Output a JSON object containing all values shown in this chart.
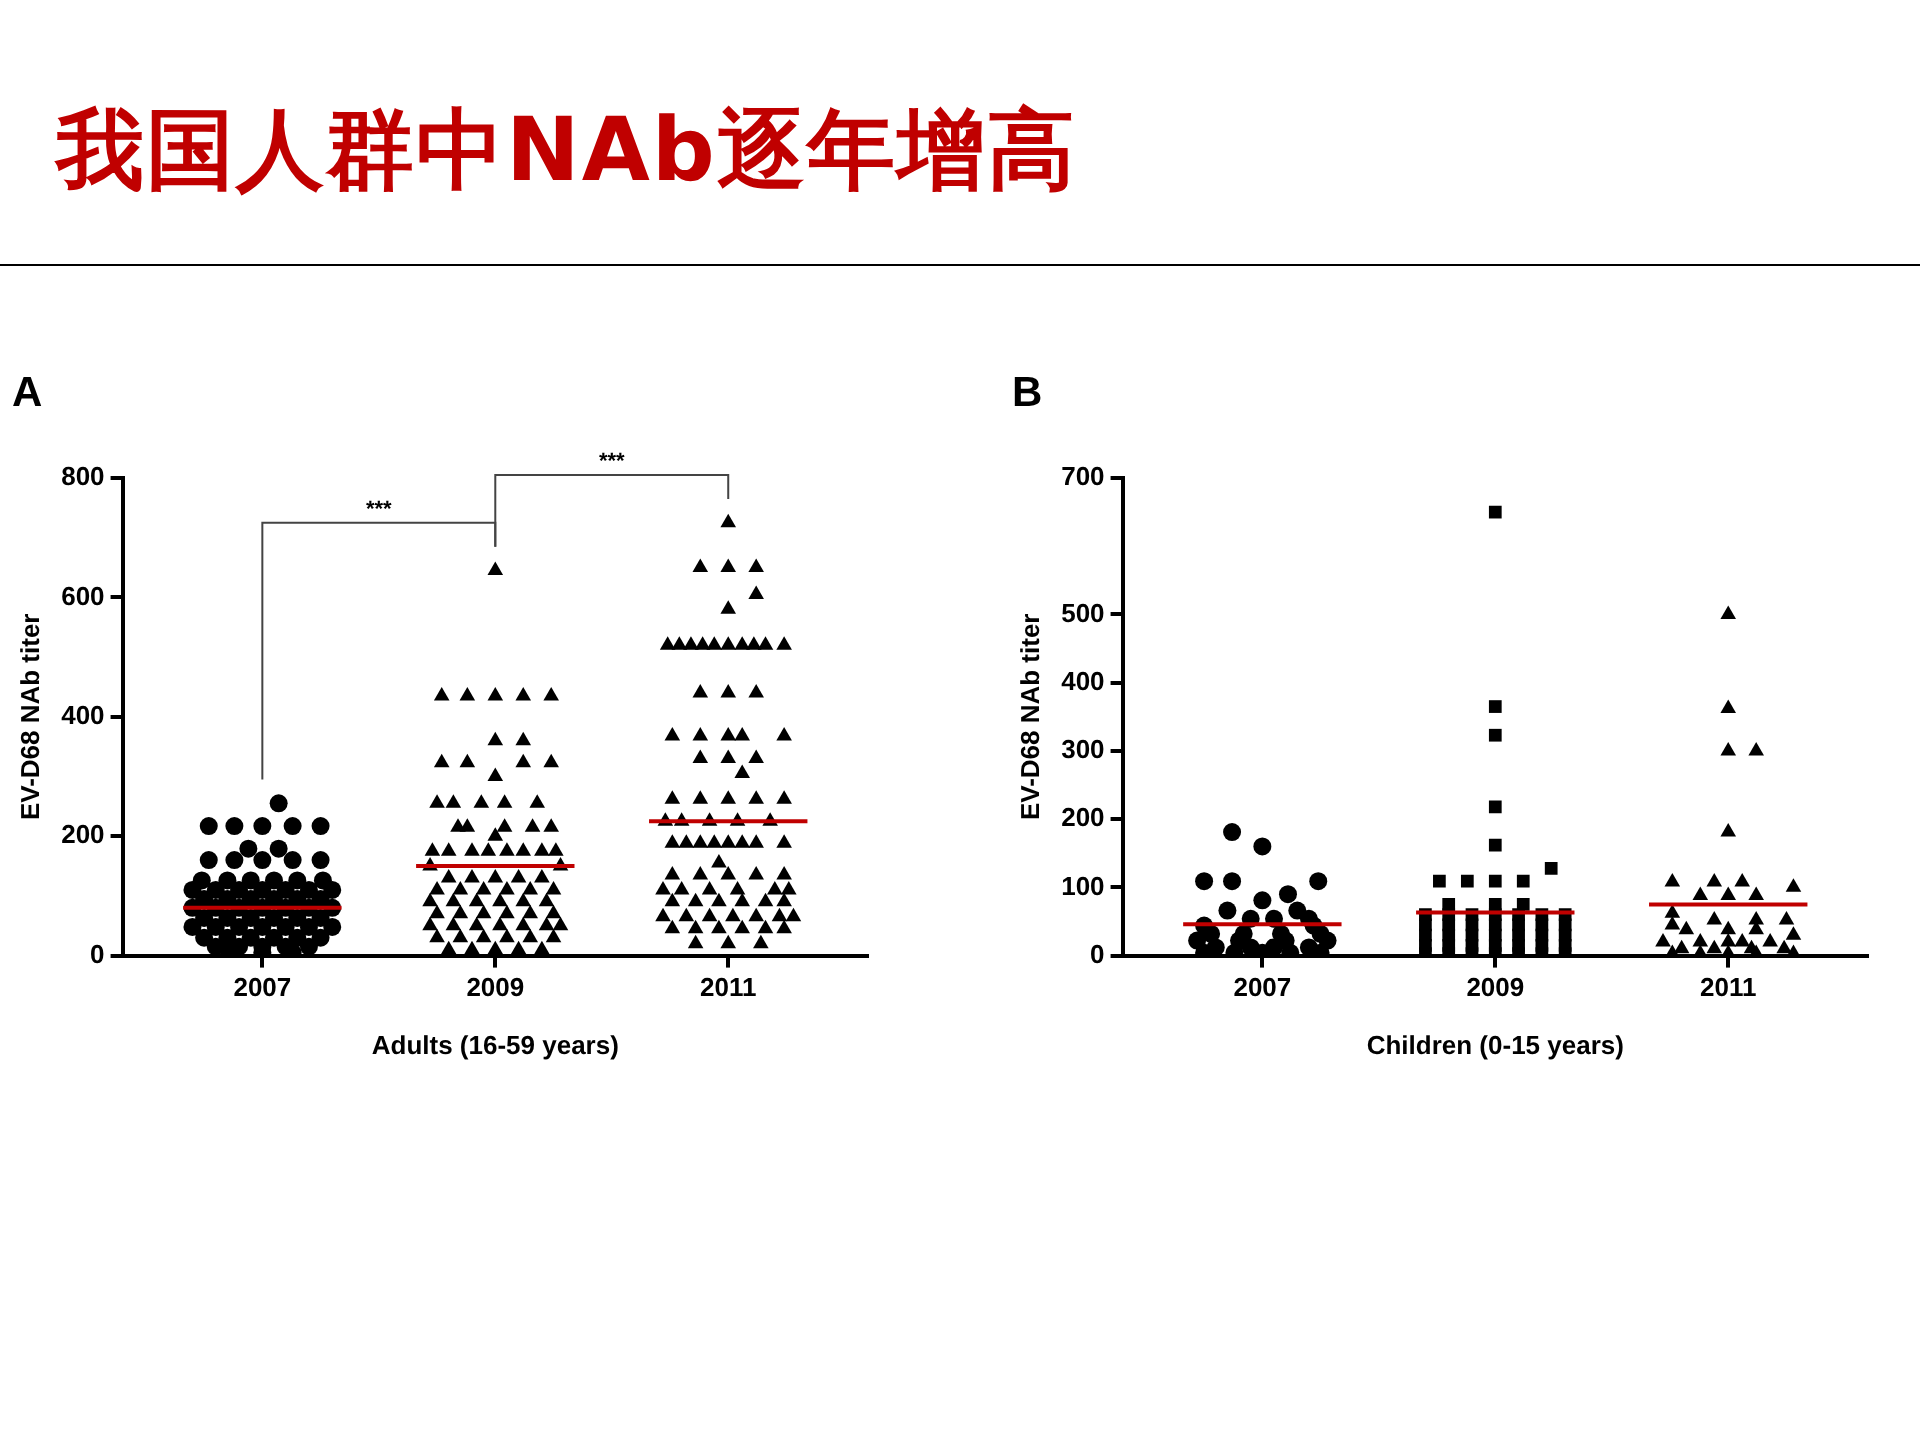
{
  "chart_data": [
    {
      "type": "scatter",
      "title": "我国人群中NAb逐年增高",
      "xlabel": "Adults (16-59 years)",
      "ylabel": "EV-D68 NAb titer",
      "annotations": [
        "A",
        "***",
        "***"
      ],
      "xlim": [
        2005.8,
        2012.2
      ],
      "xticks": [
        2007,
        2009,
        2011
      ],
      "ylim": [
        0,
        800
      ],
      "yticks": [
        0,
        200,
        400,
        600,
        800
      ],
      "grid": false,
      "series": [
        {
          "color": "#000000",
          "marker": "circle",
          "x": [
            2007.14,
            2006.54,
            2006.76,
            2007,
            2007.26,
            2007.5,
            2006.88,
            2007.14,
            2006.54,
            2006.76,
            2007,
            2007.26,
            2007.5,
            2006.48,
            2006.7,
            2006.9,
            2007.1,
            2007.3,
            2007.52,
            2006.4,
            2006.6,
            2006.8,
            2007,
            2007.2,
            2007.4,
            2007.6,
            2006.5,
            2006.7,
            2006.9,
            2007.1,
            2007.3,
            2007.5,
            2006.4,
            2006.6,
            2006.8,
            2007,
            2007.2,
            2007.4,
            2007.6,
            2006.5,
            2006.7,
            2006.9,
            2007.1,
            2007.3,
            2007.5,
            2006.4,
            2006.6,
            2006.8,
            2007,
            2007.2,
            2007.4,
            2007.6,
            2006.5,
            2006.7,
            2006.9,
            2007.1,
            2007.3,
            2007.5,
            2006.6,
            2006.8,
            2007,
            2007.2,
            2007.4,
            2006.72,
            2007,
            2007.26
          ],
          "values": [
            255,
            217,
            217,
            217,
            217,
            217,
            179,
            179,
            160,
            160,
            160,
            160,
            160,
            126,
            126,
            126,
            126,
            126,
            126,
            110,
            110,
            110,
            110,
            110,
            110,
            110,
            95,
            95,
            95,
            95,
            95,
            95,
            80,
            80,
            80,
            80,
            80,
            80,
            80,
            63,
            63,
            63,
            63,
            63,
            63,
            48,
            48,
            48,
            48,
            48,
            48,
            48,
            30,
            30,
            30,
            30,
            30,
            30,
            15,
            15,
            15,
            15,
            15,
            5,
            5,
            5
          ]
        },
        {
          "color": "#000000",
          "marker": "triangle",
          "x": [
            2009,
            2008.54,
            2008.76,
            2009,
            2009.24,
            2009.48,
            2009,
            2009.24,
            2008.54,
            2008.76,
            2009.24,
            2009.48,
            2009,
            2008.5,
            2008.64,
            2008.88,
            2009.08,
            2009.36,
            2008.68,
            2008.76,
            2009.08,
            2009.32,
            2009.48,
            2009,
            2008.46,
            2008.6,
            2008.8,
            2008.94,
            2009.1,
            2009.24,
            2009.4,
            2009.52,
            2008.44,
            2009.56,
            2008.6,
            2008.8,
            2009,
            2009.2,
            2009.4,
            2008.5,
            2008.7,
            2008.9,
            2009.1,
            2009.3,
            2009.5,
            2008.44,
            2008.64,
            2008.84,
            2009.04,
            2009.24,
            2009.44,
            2008.5,
            2008.7,
            2008.9,
            2009.1,
            2009.3,
            2009.5,
            2008.44,
            2008.64,
            2008.84,
            2009.04,
            2009.24,
            2009.44,
            2009.56,
            2008.5,
            2008.7,
            2008.9,
            2009.1,
            2009.3,
            2009.5,
            2008.6,
            2008.8,
            2009,
            2009.2,
            2009.4
          ],
          "values": [
            645,
            435,
            435,
            435,
            435,
            435,
            360,
            360,
            323,
            323,
            323,
            323,
            300,
            255,
            255,
            255,
            255,
            255,
            215,
            215,
            215,
            215,
            215,
            200,
            175,
            175,
            175,
            175,
            175,
            175,
            175,
            175,
            150,
            150,
            130,
            130,
            130,
            130,
            130,
            110,
            110,
            110,
            110,
            110,
            110,
            90,
            90,
            90,
            90,
            90,
            90,
            70,
            70,
            70,
            70,
            70,
            70,
            50,
            50,
            50,
            50,
            50,
            50,
            50,
            30,
            30,
            30,
            30,
            30,
            30,
            10,
            10,
            10,
            10,
            10
          ]
        },
        {
          "color": "#000000",
          "marker": "triangle",
          "x": [
            2011,
            2010.76,
            2011,
            2011.24,
            2011.24,
            2011,
            2010.48,
            2010.58,
            2010.68,
            2010.78,
            2010.88,
            2011,
            2011.12,
            2011.22,
            2011.32,
            2011.48,
            2010.76,
            2011,
            2011.24,
            2010.52,
            2010.76,
            2011,
            2011.12,
            2011.48,
            2010.76,
            2011,
            2011.24,
            2011.12,
            2010.52,
            2010.76,
            2011,
            2011.24,
            2011.48,
            2010.46,
            2010.6,
            2010.84,
            2011.08,
            2011.36,
            2010.52,
            2010.64,
            2010.76,
            2010.88,
            2011,
            2011.12,
            2011.24,
            2011.48,
            2010.92,
            2010.52,
            2010.76,
            2011,
            2011.24,
            2011.48,
            2010.44,
            2010.6,
            2010.84,
            2011.08,
            2011.4,
            2011.52,
            2010.52,
            2010.72,
            2010.92,
            2011.12,
            2011.32,
            2011.48,
            2010.44,
            2010.64,
            2010.84,
            2011.04,
            2011.24,
            2011.44,
            2011.56,
            2010.52,
            2010.72,
            2010.92,
            2011.12,
            2011.32,
            2011.48,
            2010.72,
            2011,
            2011.28
          ],
          "values": [
            725,
            650,
            650,
            650,
            605,
            580,
            520,
            520,
            520,
            520,
            520,
            520,
            520,
            520,
            520,
            520,
            440,
            440,
            440,
            368,
            368,
            368,
            368,
            368,
            330,
            330,
            330,
            305,
            262,
            262,
            262,
            262,
            262,
            225,
            225,
            225,
            225,
            225,
            188,
            188,
            188,
            188,
            188,
            188,
            188,
            188,
            155,
            135,
            135,
            135,
            135,
            135,
            110,
            110,
            110,
            110,
            110,
            110,
            90,
            90,
            90,
            90,
            90,
            90,
            65,
            65,
            65,
            65,
            65,
            65,
            65,
            45,
            45,
            45,
            45,
            45,
            45,
            20,
            20,
            20
          ]
        },
        {
          "type": "line",
          "color": "#c00000",
          "marker": "none",
          "x": [
            2006.32,
            2007.68
          ],
          "values": [
            80,
            80
          ]
        },
        {
          "type": "line",
          "color": "#c00000",
          "marker": "none",
          "x": [
            2008.32,
            2009.68
          ],
          "values": [
            150,
            150
          ]
        },
        {
          "type": "line",
          "color": "#c00000",
          "marker": "none",
          "x": [
            2010.32,
            2011.68
          ],
          "values": [
            225,
            225
          ]
        }
      ]
    },
    {
      "type": "scatter",
      "xlabel": "Children (0-15 years)",
      "ylabel": "EV-D68 NAb titer",
      "annotations": [
        "B"
      ],
      "xlim": [
        2005.8,
        2012.2
      ],
      "xticks": [
        2007,
        2009,
        2011
      ],
      "ylim": [
        0,
        700
      ],
      "yticks": [
        0,
        100,
        200,
        300,
        400,
        500,
        700
      ],
      "grid": false,
      "series": [
        {
          "color": "#000000",
          "marker": "circle",
          "x": [
            2006.74,
            2007,
            2006.5,
            2006.74,
            2007.48,
            2007.22,
            2007,
            2006.7,
            2007.3,
            2006.9,
            2007.1,
            2007.4,
            2006.5,
            2007.44,
            2006.56,
            2006.84,
            2007.16,
            2007.5,
            2006.44,
            2006.8,
            2007.2,
            2007.56,
            2006.6,
            2006.9,
            2007.1,
            2007.4,
            2006.5,
            2006.76,
            2007,
            2007.24,
            2007.5
          ],
          "values": [
            181,
            160,
            109,
            109,
            109,
            90,
            81,
            66,
            66,
            54,
            54,
            54,
            44,
            44,
            32,
            32,
            32,
            32,
            22,
            22,
            22,
            22,
            12,
            12,
            12,
            12,
            4,
            4,
            4,
            4,
            4
          ]
        },
        {
          "color": "#000000",
          "marker": "square",
          "x": [
            2009,
            2009,
            2009,
            2009,
            2009,
            2009.48,
            2008.52,
            2008.76,
            2009,
            2009.24,
            2008.6,
            2009,
            2009.24,
            2008.4,
            2008.6,
            2008.8,
            2009,
            2009.2,
            2009.4,
            2009.6,
            2008.4,
            2008.6,
            2008.8,
            2009,
            2009.2,
            2009.4,
            2009.6,
            2008.4,
            2008.6,
            2008.8,
            2009,
            2009.2,
            2009.4,
            2009.6,
            2008.4,
            2008.6,
            2008.8,
            2009,
            2009.2,
            2009.4,
            2009.6,
            2008.4,
            2008.6,
            2008.8,
            2009,
            2009.2,
            2009.4,
            2009.6
          ],
          "values": [
            650,
            365,
            323,
            218,
            162,
            128,
            109,
            109,
            109,
            109,
            75,
            75,
            75,
            60,
            60,
            60,
            60,
            60,
            60,
            60,
            45,
            45,
            45,
            45,
            45,
            45,
            45,
            30,
            30,
            30,
            30,
            30,
            30,
            30,
            15,
            15,
            15,
            15,
            15,
            15,
            15,
            3,
            3,
            3,
            3,
            3,
            3,
            3
          ]
        },
        {
          "color": "#000000",
          "marker": "triangle",
          "x": [
            2011,
            2011,
            2011,
            2011.24,
            2011,
            2010.52,
            2010.88,
            2011.12,
            2011.56,
            2010.76,
            2011,
            2011.24,
            2010.52,
            2010.88,
            2011.24,
            2011.5,
            2010.52,
            2010.64,
            2011,
            2011.24,
            2011.56,
            2010.44,
            2010.76,
            2011,
            2011.12,
            2011.36,
            2010.6,
            2010.88,
            2011.2,
            2011.48,
            2010.52,
            2010.76,
            2011,
            2011.24,
            2011.56
          ],
          "values": [
            500,
            362,
            300,
            300,
            181,
            108,
            108,
            108,
            100,
            88,
            88,
            88,
            62,
            52,
            52,
            52,
            45,
            38,
            38,
            38,
            30,
            20,
            20,
            20,
            20,
            20,
            10,
            10,
            10,
            10,
            3,
            3,
            3,
            3,
            3
          ]
        },
        {
          "type": "line",
          "color": "#c00000",
          "marker": "none",
          "x": [
            2006.32,
            2007.68
          ],
          "values": [
            46,
            46
          ]
        },
        {
          "type": "line",
          "color": "#c00000",
          "marker": "none",
          "x": [
            2008.32,
            2009.68
          ],
          "values": [
            63,
            63
          ]
        },
        {
          "type": "line",
          "color": "#c00000",
          "marker": "none",
          "x": [
            2010.32,
            2011.68
          ],
          "values": [
            75,
            75
          ]
        }
      ]
    }
  ]
}
